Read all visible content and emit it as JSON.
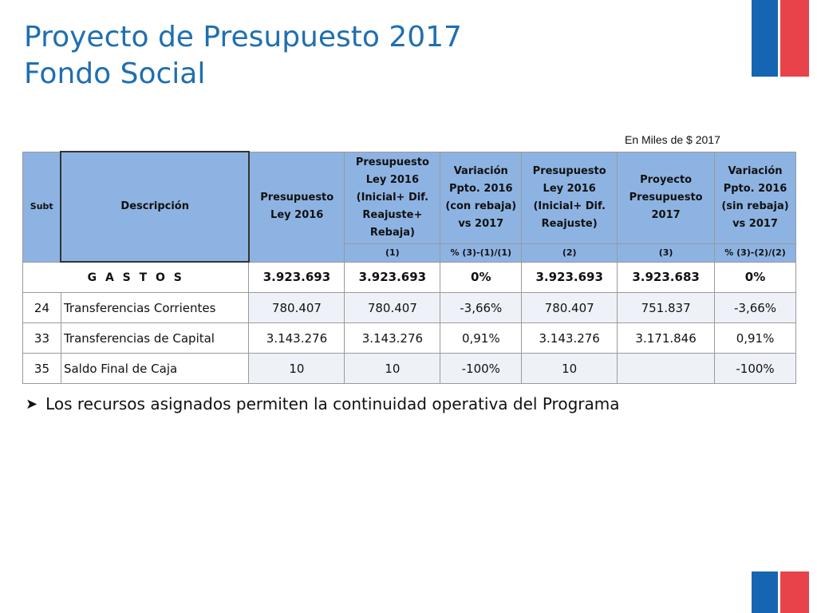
{
  "title": {
    "line1": "Proyecto de Presupuesto 2017",
    "line2": "Fondo Social"
  },
  "units": "En Miles de $ 2017",
  "table": {
    "headers": [
      "Subt",
      "Descripción",
      "Presupuesto Ley 2016",
      "Presupuesto Ley 2016 (Inicial+ Dif. Reajuste+ Rebaja)",
      "Variación Ppto. 2016 (con rebaja) vs 2017",
      "Presupuesto Ley 2016 (Inicial+ Dif. Reajuste)",
      "Proyecto Presupuesto 2017",
      "Variación Ppto. 2016 (sin rebaja) vs 2017"
    ],
    "subheaders": [
      "(1)",
      "% (3)-(1)/(1)",
      "(2)",
      "(3)",
      "% (3)-(2)/(2)"
    ],
    "gastos": {
      "label": "G A S T O S",
      "values": [
        "3.923.693",
        "3.923.693",
        "0%",
        "3.923.693",
        "3.923.683",
        "0%"
      ]
    },
    "rows": [
      {
        "subt": "24",
        "desc": "Transferencias Corrientes",
        "values": [
          "780.407",
          "780.407",
          "-3,66%",
          "780.407",
          "751.837",
          "-3,66%"
        ]
      },
      {
        "subt": "33",
        "desc": "Transferencias de Capital",
        "values": [
          "3.143.276",
          "3.143.276",
          "0,91%",
          "3.143.276",
          "3.171.846",
          "0,91%"
        ]
      },
      {
        "subt": "35",
        "desc": "Saldo Final de Caja",
        "values": [
          "10",
          "10",
          "-100%",
          "10",
          "",
          "-100%"
        ]
      }
    ]
  },
  "bullet": {
    "icon": "arrow-bullet-icon",
    "text": "Los recursos asignados permiten la continuidad operativa del Programa"
  },
  "colors": {
    "title": "#1f6fb0",
    "header_bg": "#8db3e2",
    "flag_blue": "#1565b3",
    "flag_red": "#e8434a"
  }
}
